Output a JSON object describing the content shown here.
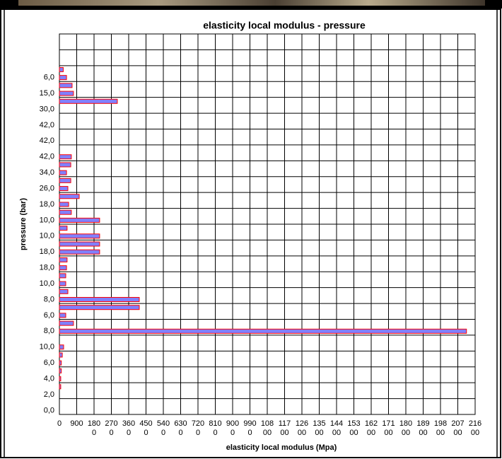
{
  "chart_data": {
    "type": "bar",
    "orientation": "horizontal",
    "title": "elasticity local modulus - pressure",
    "x_label": "elasticity local modulus (Mpa)",
    "y_label": "pressure (bar)",
    "categories": [
      "0,0",
      null,
      "2,0",
      null,
      "4,0",
      null,
      "6,0",
      null,
      "10,0",
      null,
      "8,0",
      null,
      "6,0",
      null,
      "8,0",
      null,
      "10,0",
      null,
      "18,0",
      null,
      "18,0",
      null,
      "10,0",
      null,
      "10,0",
      null,
      "18,0",
      null,
      "26,0",
      null,
      "34,0",
      null,
      "42,0",
      null,
      "42,0",
      null,
      "42,0",
      null,
      "30,0",
      null,
      "15,0",
      null,
      "6,0",
      null,
      null,
      null,
      null,
      null
    ],
    "values": [
      null,
      null,
      null,
      70,
      70,
      100,
      100,
      150,
      220,
      null,
      21150,
      730,
      330,
      4150,
      4150,
      440,
      330,
      330,
      370,
      400,
      2090,
      2090,
      2090,
      400,
      2090,
      620,
      480,
      1030,
      440,
      590,
      370,
      590,
      620,
      null,
      null,
      null,
      null,
      null,
      null,
      3010,
      730,
      660,
      370,
      200,
      null,
      null,
      null,
      null
    ],
    "color": "#8080ff",
    "edge_color": "#ff0000",
    "xlim": [
      0,
      21600
    ],
    "xticks": [
      0,
      900,
      1800,
      2700,
      3600,
      4500,
      5400,
      6300,
      7200,
      8100,
      9000,
      9900,
      10800,
      11700,
      12600,
      13500,
      14400,
      15300,
      16200,
      17100,
      18000,
      18900,
      19800,
      20700,
      21600
    ],
    "grid": true
  }
}
